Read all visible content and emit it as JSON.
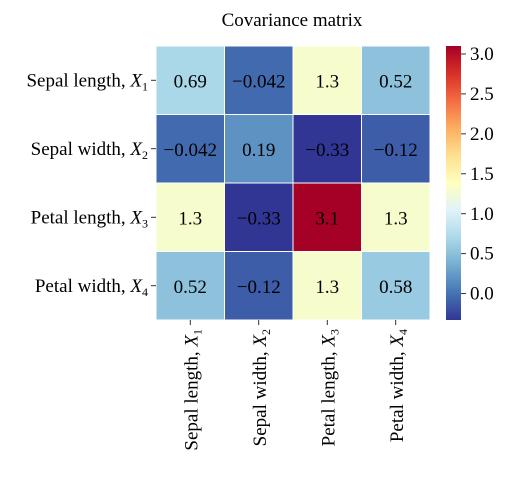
{
  "chart_data": {
    "type": "heatmap",
    "title": "Covariance matrix",
    "row_labels": [
      {
        "text": "Sepal length, ",
        "var": "X",
        "sub": "1"
      },
      {
        "text": "Sepal width, ",
        "var": "X",
        "sub": "2"
      },
      {
        "text": "Petal length, ",
        "var": "X",
        "sub": "3"
      },
      {
        "text": "Petal width, ",
        "var": "X",
        "sub": "4"
      }
    ],
    "col_labels": [
      {
        "text": "Sepal length, ",
        "var": "X",
        "sub": "1"
      },
      {
        "text": "Sepal width, ",
        "var": "X",
        "sub": "2"
      },
      {
        "text": "Petal length, ",
        "var": "X",
        "sub": "3"
      },
      {
        "text": "Petal width, ",
        "var": "X",
        "sub": "4"
      }
    ],
    "values": [
      [
        0.69,
        -0.042,
        1.3,
        0.52
      ],
      [
        -0.042,
        0.19,
        -0.33,
        -0.12
      ],
      [
        1.3,
        -0.33,
        3.1,
        1.3
      ],
      [
        0.52,
        -0.12,
        1.3,
        0.58
      ]
    ],
    "annotations": [
      [
        "0.69",
        "−0.042",
        "1.3",
        "0.52"
      ],
      [
        "−0.042",
        "0.19",
        "−0.33",
        "−0.12"
      ],
      [
        "1.3",
        "−0.33",
        "3.1",
        "1.3"
      ],
      [
        "0.52",
        "−0.12",
        "1.3",
        "0.58"
      ]
    ],
    "colormap": "RdYlBu_r",
    "colormap_stops": [
      "#313695",
      "#4575b4",
      "#74add1",
      "#abd9e9",
      "#e0f3f8",
      "#ffffbf",
      "#fee090",
      "#fdae61",
      "#f46d43",
      "#d73027",
      "#a50026"
    ],
    "vmin": -0.33,
    "vmax": 3.1,
    "colorbar": {
      "ticks": [
        0.0,
        0.5,
        1.0,
        1.5,
        2.0,
        2.5,
        3.0
      ],
      "tick_labels": [
        "0.0",
        "0.5",
        "1.0",
        "1.5",
        "2.0",
        "2.5",
        "3.0"
      ]
    }
  }
}
